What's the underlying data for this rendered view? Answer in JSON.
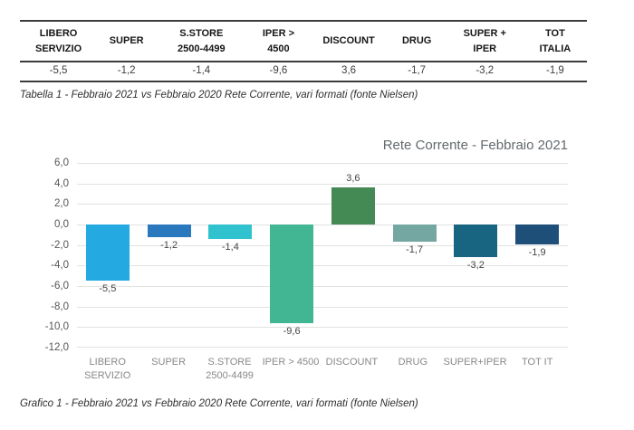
{
  "table": {
    "headers": [
      [
        "LIBERO",
        "SERVIZIO"
      ],
      [
        "SUPER"
      ],
      [
        "S.STORE",
        "2500-4499"
      ],
      [
        "IPER >",
        "4500"
      ],
      [
        "DISCOUNT"
      ],
      [
        "DRUG"
      ],
      [
        "SUPER +",
        "IPER"
      ],
      [
        "TOT",
        "ITALIA"
      ]
    ],
    "values": [
      "-5,5",
      "-1,2",
      "-1,4",
      "-9,6",
      "3,6",
      "-1,7",
      "-3,2",
      "-1,9"
    ]
  },
  "table_caption": "Tabella 1 - Febbraio 2021 vs Febbraio 2020 Rete Corrente, vari formati (fonte Nielsen)",
  "chart_caption": "Grafico 1 - Febbraio 2021 vs Febbraio 2020 Rete Corrente, vari formati (fonte Nielsen)",
  "chart_data": {
    "type": "bar",
    "title": "Rete Corrente - Febbraio 2021",
    "categories": [
      [
        "LIBERO",
        "SERVIZIO"
      ],
      [
        "SUPER"
      ],
      [
        "S.STORE",
        "2500-4499"
      ],
      [
        "IPER > 4500"
      ],
      [
        "DISCOUNT"
      ],
      [
        "DRUG"
      ],
      [
        "SUPER+IPER"
      ],
      [
        "TOT IT"
      ]
    ],
    "values": [
      -5.5,
      -1.2,
      -1.4,
      -9.6,
      3.6,
      -1.7,
      -3.2,
      -1.9
    ],
    "value_labels": [
      "-5,5",
      "-1,2",
      "-1,4",
      "-9,6",
      "3,6",
      "-1,7",
      "-3,2",
      "-1,9"
    ],
    "bar_colors": [
      "#24A9E1",
      "#2A79BE",
      "#30C3CF",
      "#42B692",
      "#438A55",
      "#74A7A2",
      "#186581",
      "#1D4F78"
    ],
    "xlabel": "",
    "ylabel": "",
    "ylim": [
      -12,
      6
    ],
    "ytick_step": 2,
    "ytick_labels": [
      "6,0",
      "4,0",
      "2,0",
      "0,0",
      "-2,0",
      "-4,0",
      "-6,0",
      "-8,0",
      "-10,0",
      "-12,0"
    ],
    "grid": true,
    "legend": "none"
  }
}
